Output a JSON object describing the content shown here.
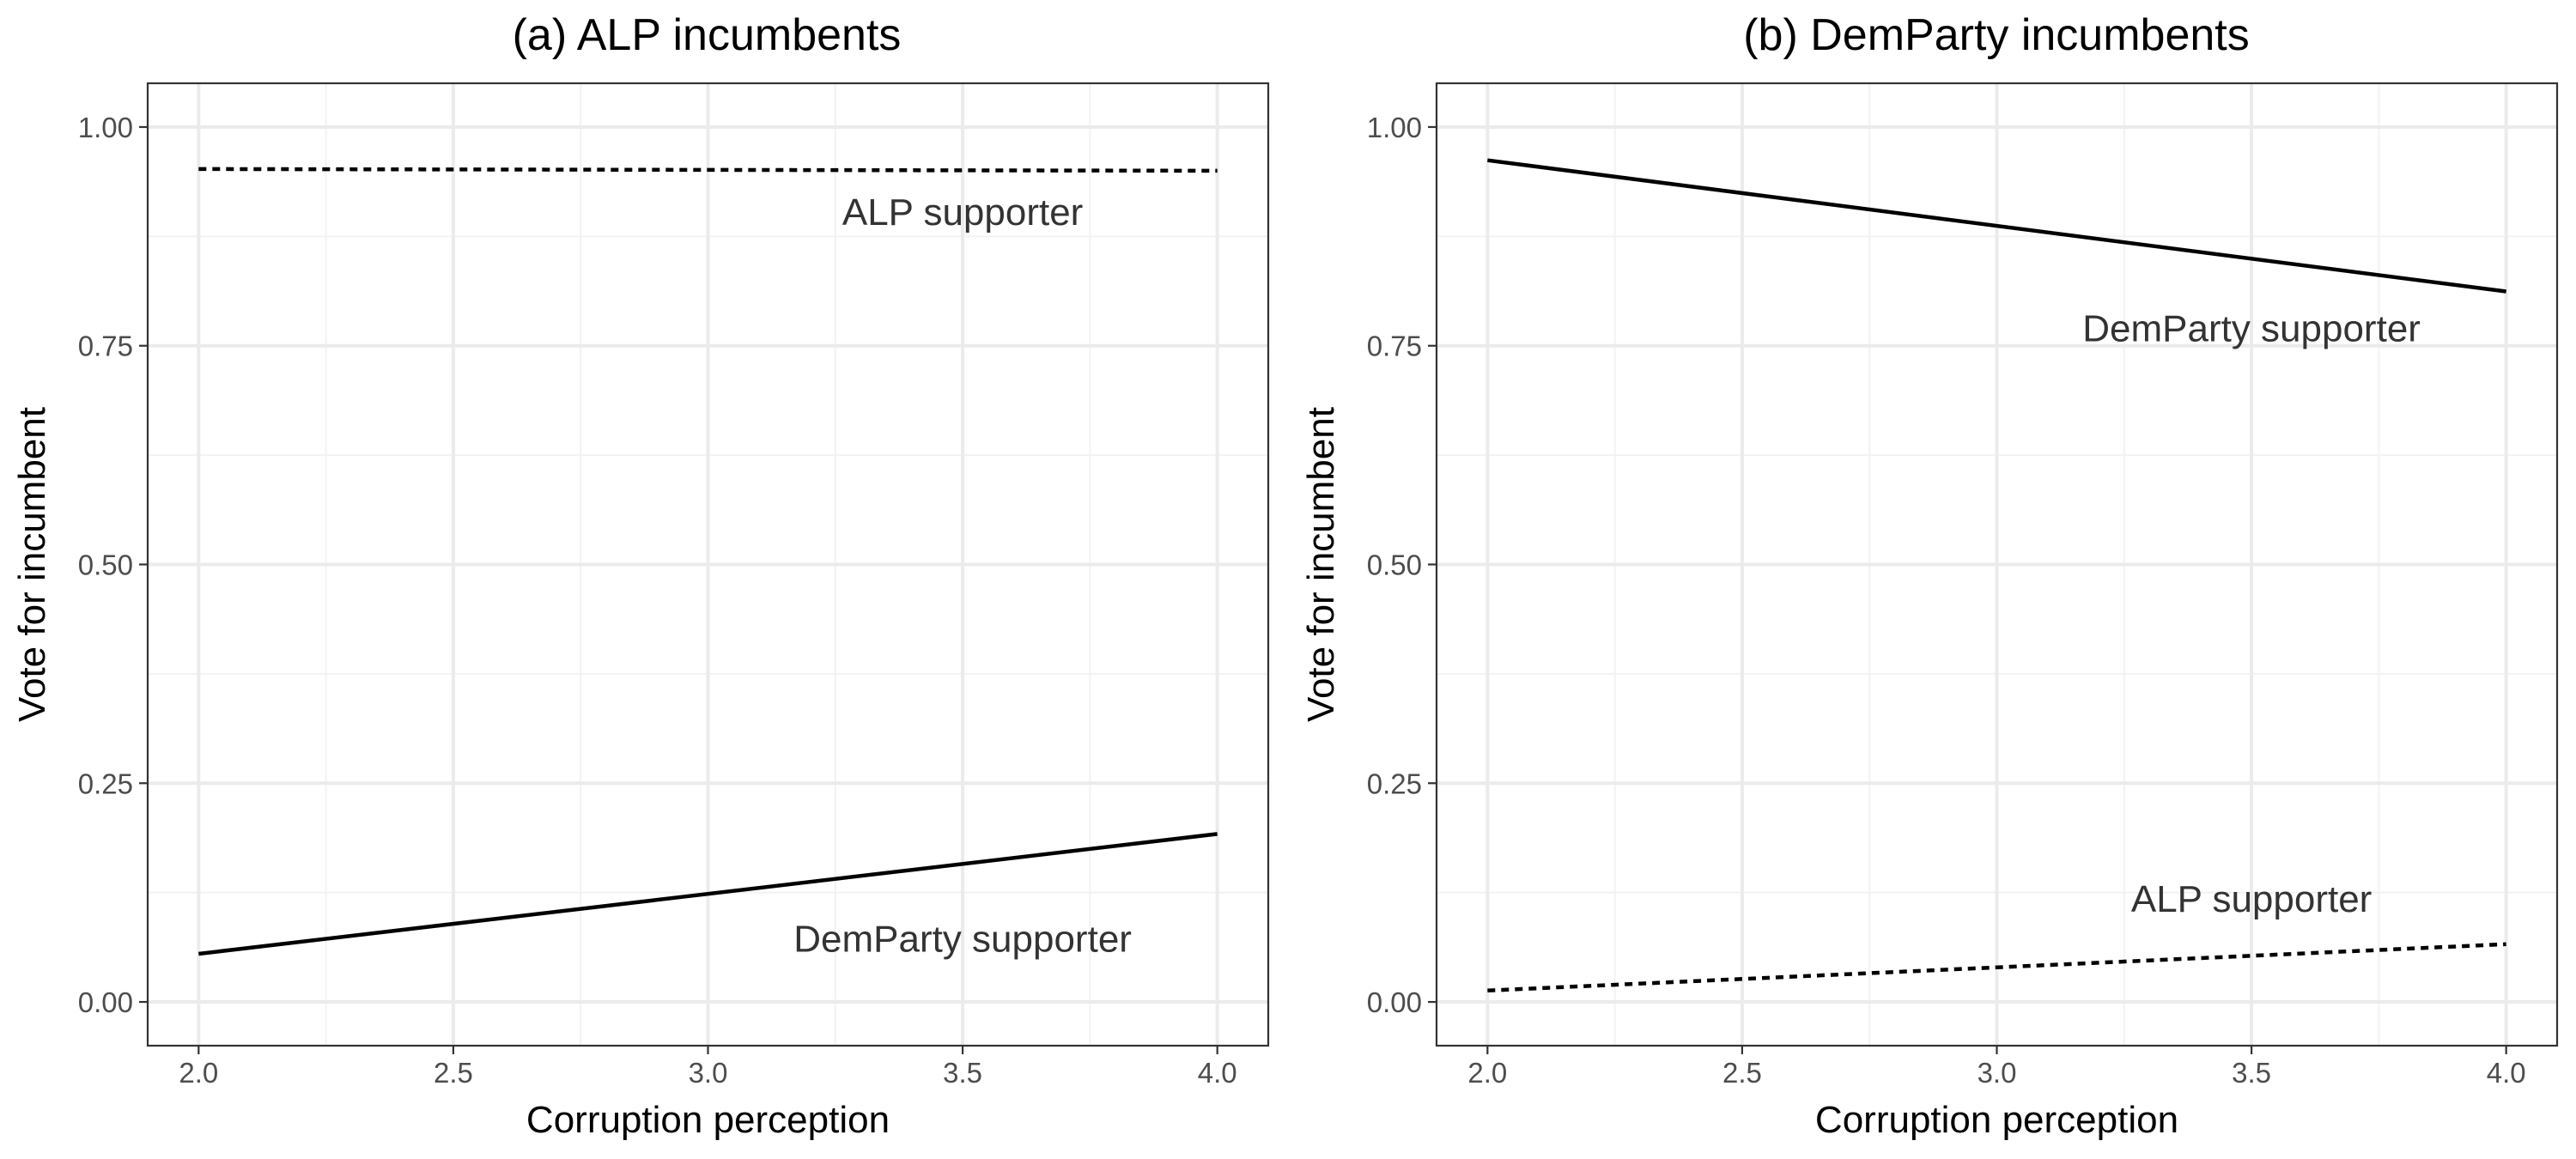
{
  "chart_data": [
    {
      "type": "line",
      "title": "(a) ALP incumbents",
      "xlabel": "Corruption perception",
      "ylabel": "Vote for incumbent",
      "xlim": [
        1.9,
        4.1
      ],
      "ylim": [
        -0.05,
        1.05
      ],
      "x_ticks": [
        2.0,
        2.5,
        3.0,
        3.5,
        4.0
      ],
      "x_tick_labels": [
        "2.0",
        "2.5",
        "3.0",
        "3.5",
        "4.0"
      ],
      "y_ticks": [
        0.0,
        0.25,
        0.5,
        0.75,
        1.0
      ],
      "y_tick_labels": [
        "0.00",
        "0.25",
        "0.50",
        "0.75",
        "1.00"
      ],
      "grid": true,
      "legend": "none",
      "series": [
        {
          "name": "ALP supporter",
          "linetype": "dotted",
          "x": [
            2.0,
            4.0
          ],
          "y": [
            0.952,
            0.95
          ],
          "label_pos": [
            3.5,
            0.903
          ]
        },
        {
          "name": "DemParty supporter",
          "linetype": "solid",
          "x": [
            2.0,
            4.0
          ],
          "y": [
            0.055,
            0.192
          ],
          "label_pos": [
            3.5,
            0.072
          ]
        }
      ]
    },
    {
      "type": "line",
      "title": "(b) DemParty incumbents",
      "xlabel": "Corruption perception",
      "ylabel": "Vote for incumbent",
      "xlim": [
        1.9,
        4.1
      ],
      "ylim": [
        -0.05,
        1.05
      ],
      "x_ticks": [
        2.0,
        2.5,
        3.0,
        3.5,
        4.0
      ],
      "x_tick_labels": [
        "2.0",
        "2.5",
        "3.0",
        "3.5",
        "4.0"
      ],
      "y_ticks": [
        0.0,
        0.25,
        0.5,
        0.75,
        1.0
      ],
      "y_tick_labels": [
        "0.00",
        "0.25",
        "0.50",
        "0.75",
        "1.00"
      ],
      "grid": true,
      "legend": "none",
      "series": [
        {
          "name": "DemParty supporter",
          "linetype": "solid",
          "x": [
            2.0,
            4.0
          ],
          "y": [
            0.962,
            0.812
          ],
          "label_pos": [
            3.5,
            0.77
          ]
        },
        {
          "name": "ALP supporter",
          "linetype": "dotted",
          "x": [
            2.0,
            4.0
          ],
          "y": [
            0.013,
            0.066
          ],
          "label_pos": [
            3.5,
            0.118
          ]
        }
      ]
    }
  ]
}
